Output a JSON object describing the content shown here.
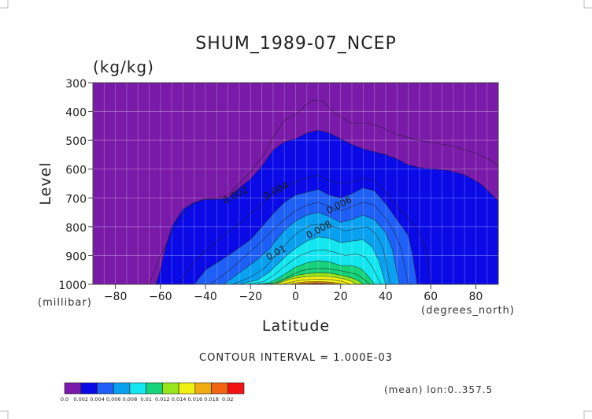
{
  "chart_data": {
    "type": "heatmap",
    "title": "SHUM_1989-07_NCEP",
    "units_label": "(kg/kg)",
    "ylabel": "Level",
    "xlabel": "Latitude",
    "y_unit_label": "(millibar)",
    "x_unit_label": "(degrees_north)",
    "xlim": [
      -90,
      90
    ],
    "ylim": [
      1000,
      300
    ],
    "x_ticks": [
      -80,
      -60,
      -40,
      -20,
      0,
      20,
      40,
      60,
      80
    ],
    "x_tick_labels": [
      "−80",
      "−60",
      "−40",
      "−20",
      "0",
      "20",
      "40",
      "60",
      "80"
    ],
    "y_ticks": [
      300,
      400,
      500,
      600,
      700,
      800,
      900,
      1000
    ],
    "y_tick_labels": [
      "300",
      "400",
      "500",
      "600",
      "700",
      "800",
      "900",
      "1000"
    ],
    "grid": true,
    "contour_interval_text": "CONTOUR INTERVAL = 1.000E-03",
    "mean_text": "(mean) lon:0..357.5",
    "contour_labels": [
      {
        "text": "0.002",
        "x": -26,
        "level": 700
      },
      {
        "text": "0.004",
        "x": -8,
        "level": 685
      },
      {
        "text": "0.006",
        "x": 20,
        "level": 735
      },
      {
        "text": "0.008",
        "x": 11,
        "level": 820
      },
      {
        "text": "0.01",
        "x": -8,
        "level": 900
      }
    ],
    "colorbar": {
      "bounds": [
        "0.0",
        "0.002",
        "0.004",
        "0.006",
        "0.008",
        "0.01",
        "0.012",
        "0.014",
        "0.016",
        "0.018",
        "0.02"
      ],
      "colors": [
        "#7a1aa8",
        "#0a0ae6",
        "#1e5ff5",
        "#0aa0f0",
        "#14e6f0",
        "#16d278",
        "#96e61e",
        "#f0f014",
        "#f0aa14",
        "#f06414",
        "#f01414"
      ]
    },
    "fill_levels": [
      0.001,
      0.002,
      0.003,
      0.004,
      0.005,
      0.006,
      0.007,
      0.008,
      0.009,
      0.01,
      0.011,
      0.012,
      0.013,
      0.014,
      0.015,
      0.016,
      0.017
    ],
    "fill_colors": [
      "#7a1aa8",
      "#0a0ae6",
      "#0a0ae6",
      "#1e5ff5",
      "#1e5ff5",
      "#0aa0f0",
      "#0aa0f0",
      "#14e6f0",
      "#14e6f0",
      "#16d278",
      "#16d278",
      "#96e61e",
      "#f0f014",
      "#f0f014",
      "#f0aa14",
      "#f06414",
      "#f01414"
    ],
    "series": [
      {
        "name": "0.001",
        "points": [
          [
            -65,
            1000
          ],
          [
            -63,
            960
          ],
          [
            -60,
            900
          ],
          [
            -55,
            820
          ],
          [
            -50,
            755
          ],
          [
            -45,
            720
          ],
          [
            -40,
            700
          ],
          [
            -35,
            700
          ],
          [
            -30,
            690
          ],
          [
            -25,
            650
          ],
          [
            -20,
            610
          ],
          [
            -15,
            560
          ],
          [
            -10,
            490
          ],
          [
            -5,
            430
          ],
          [
            0,
            410
          ],
          [
            5,
            375
          ],
          [
            8,
            360
          ],
          [
            12,
            365
          ],
          [
            18,
            410
          ],
          [
            25,
            440
          ],
          [
            32,
            440
          ],
          [
            38,
            455
          ],
          [
            45,
            480
          ],
          [
            50,
            490
          ],
          [
            55,
            500
          ],
          [
            62,
            510
          ],
          [
            70,
            520
          ],
          [
            80,
            545
          ],
          [
            88,
            575
          ],
          [
            90,
            590
          ]
        ]
      },
      {
        "name": "0.002",
        "points": [
          [
            -62,
            1000
          ],
          [
            -60,
            950
          ],
          [
            -58,
            880
          ],
          [
            -55,
            800
          ],
          [
            -50,
            740
          ],
          [
            -45,
            715
          ],
          [
            -40,
            705
          ],
          [
            -35,
            705
          ],
          [
            -30,
            700
          ],
          [
            -25,
            665
          ],
          [
            -20,
            635
          ],
          [
            -15,
            590
          ],
          [
            -10,
            535
          ],
          [
            -5,
            505
          ],
          [
            0,
            495
          ],
          [
            5,
            475
          ],
          [
            10,
            465
          ],
          [
            15,
            475
          ],
          [
            20,
            495
          ],
          [
            25,
            515
          ],
          [
            30,
            530
          ],
          [
            35,
            540
          ],
          [
            40,
            550
          ],
          [
            45,
            565
          ],
          [
            50,
            585
          ],
          [
            55,
            595
          ],
          [
            62,
            600
          ],
          [
            68,
            605
          ],
          [
            75,
            620
          ],
          [
            82,
            650
          ],
          [
            90,
            710
          ]
        ]
      },
      {
        "name": "0.003",
        "points": [
          [
            -52,
            1000
          ],
          [
            -45,
            920
          ],
          [
            -35,
            850
          ],
          [
            -25,
            790
          ],
          [
            -15,
            720
          ],
          [
            -10,
            680
          ],
          [
            -5,
            660
          ],
          [
            0,
            645
          ],
          [
            5,
            630
          ],
          [
            10,
            620
          ],
          [
            15,
            640
          ],
          [
            20,
            650
          ],
          [
            25,
            645
          ],
          [
            30,
            630
          ],
          [
            35,
            640
          ],
          [
            40,
            680
          ],
          [
            45,
            730
          ],
          [
            50,
            770
          ],
          [
            55,
            820
          ],
          [
            58,
            880
          ],
          [
            60,
            1000
          ]
        ]
      },
      {
        "name": "0.004",
        "points": [
          [
            -45,
            1000
          ],
          [
            -40,
            950
          ],
          [
            -30,
            900
          ],
          [
            -20,
            845
          ],
          [
            -15,
            800
          ],
          [
            -10,
            755
          ],
          [
            -5,
            715
          ],
          [
            0,
            690
          ],
          [
            5,
            680
          ],
          [
            10,
            670
          ],
          [
            15,
            690
          ],
          [
            20,
            700
          ],
          [
            25,
            685
          ],
          [
            30,
            665
          ],
          [
            35,
            675
          ],
          [
            40,
            720
          ],
          [
            45,
            775
          ],
          [
            50,
            830
          ],
          [
            52,
            900
          ],
          [
            54,
            1000
          ]
        ]
      },
      {
        "name": "0.005",
        "points": [
          [
            -38,
            1000
          ],
          [
            -30,
            955
          ],
          [
            -22,
            900
          ],
          [
            -15,
            850
          ],
          [
            -10,
            810
          ],
          [
            -5,
            775
          ],
          [
            0,
            745
          ],
          [
            5,
            725
          ],
          [
            10,
            715
          ],
          [
            15,
            730
          ],
          [
            20,
            745
          ],
          [
            25,
            730
          ],
          [
            30,
            715
          ],
          [
            35,
            725
          ],
          [
            40,
            770
          ],
          [
            44,
            820
          ],
          [
            47,
            880
          ],
          [
            50,
            1000
          ]
        ]
      },
      {
        "name": "0.006",
        "points": [
          [
            -32,
            1000
          ],
          [
            -25,
            960
          ],
          [
            -18,
            920
          ],
          [
            -12,
            880
          ],
          [
            -8,
            840
          ],
          [
            -4,
            805
          ],
          [
            0,
            780
          ],
          [
            5,
            760
          ],
          [
            10,
            750
          ],
          [
            15,
            765
          ],
          [
            20,
            785
          ],
          [
            25,
            775
          ],
          [
            30,
            760
          ],
          [
            35,
            775
          ],
          [
            40,
            820
          ],
          [
            43,
            880
          ],
          [
            46,
            1000
          ]
        ]
      },
      {
        "name": "0.007",
        "points": [
          [
            -28,
            1000
          ],
          [
            -20,
            975
          ],
          [
            -14,
            945
          ],
          [
            -10,
            910
          ],
          [
            -6,
            875
          ],
          [
            -2,
            840
          ],
          [
            2,
            815
          ],
          [
            7,
            795
          ],
          [
            12,
            790
          ],
          [
            17,
            800
          ],
          [
            22,
            815
          ],
          [
            28,
            805
          ],
          [
            32,
            800
          ],
          [
            36,
            830
          ],
          [
            39,
            880
          ],
          [
            42,
            1000
          ]
        ]
      },
      {
        "name": "0.008",
        "points": [
          [
            -25,
            1000
          ],
          [
            -17,
            985
          ],
          [
            -12,
            960
          ],
          [
            -8,
            930
          ],
          [
            -4,
            900
          ],
          [
            0,
            875
          ],
          [
            5,
            850
          ],
          [
            10,
            835
          ],
          [
            15,
            840
          ],
          [
            20,
            855
          ],
          [
            25,
            850
          ],
          [
            30,
            845
          ],
          [
            34,
            870
          ],
          [
            37,
            920
          ],
          [
            40,
            1000
          ]
        ]
      },
      {
        "name": "0.009",
        "points": [
          [
            -22,
            1000
          ],
          [
            -14,
            990
          ],
          [
            -10,
            970
          ],
          [
            -6,
            945
          ],
          [
            -2,
            920
          ],
          [
            2,
            900
          ],
          [
            7,
            885
          ],
          [
            12,
            880
          ],
          [
            17,
            888
          ],
          [
            22,
            900
          ],
          [
            27,
            895
          ],
          [
            31,
            905
          ],
          [
            34,
            940
          ],
          [
            38,
            1000
          ]
        ]
      },
      {
        "name": "0.01",
        "points": [
          [
            -19,
            1000
          ],
          [
            -12,
            995
          ],
          [
            -8,
            980
          ],
          [
            -4,
            960
          ],
          [
            0,
            940
          ],
          [
            5,
            925
          ],
          [
            10,
            918
          ],
          [
            15,
            922
          ],
          [
            20,
            935
          ],
          [
            25,
            935
          ],
          [
            29,
            945
          ],
          [
            32,
            970
          ],
          [
            35,
            1000
          ]
        ]
      },
      {
        "name": "0.011",
        "points": [
          [
            -15,
            1000
          ],
          [
            -9,
            995
          ],
          [
            -5,
            980
          ],
          [
            -1,
            965
          ],
          [
            3,
            952
          ],
          [
            8,
            945
          ],
          [
            13,
            945
          ],
          [
            18,
            950
          ],
          [
            23,
            958
          ],
          [
            27,
            965
          ],
          [
            30,
            980
          ],
          [
            33,
            1000
          ]
        ]
      },
      {
        "name": "0.012",
        "points": [
          [
            -12,
            1000
          ],
          [
            -7,
            992
          ],
          [
            -3,
            978
          ],
          [
            1,
            968
          ],
          [
            6,
            962
          ],
          [
            11,
            960
          ],
          [
            16,
            962
          ],
          [
            21,
            970
          ],
          [
            25,
            978
          ],
          [
            28,
            988
          ],
          [
            30,
            1000
          ]
        ]
      },
      {
        "name": "0.013",
        "points": [
          [
            -9,
            1000
          ],
          [
            -5,
            990
          ],
          [
            -1,
            980
          ],
          [
            3,
            975
          ],
          [
            8,
            972
          ],
          [
            13,
            972
          ],
          [
            18,
            976
          ],
          [
            22,
            982
          ],
          [
            25,
            990
          ],
          [
            27,
            1000
          ]
        ]
      },
      {
        "name": "0.014",
        "points": [
          [
            -6,
            1000
          ],
          [
            -2,
            992
          ],
          [
            2,
            986
          ],
          [
            6,
            983
          ],
          [
            11,
            982
          ],
          [
            16,
            984
          ],
          [
            20,
            989
          ],
          [
            23,
            995
          ],
          [
            24,
            1000
          ]
        ]
      },
      {
        "name": "0.015",
        "points": [
          [
            -3,
            1000
          ],
          [
            1,
            994
          ],
          [
            5,
            991
          ],
          [
            10,
            990
          ],
          [
            15,
            992
          ],
          [
            19,
            996
          ],
          [
            21,
            1000
          ]
        ]
      },
      {
        "name": "0.016",
        "points": [
          [
            0,
            1000
          ],
          [
            4,
            996
          ],
          [
            9,
            994
          ],
          [
            14,
            995
          ],
          [
            17,
            998
          ],
          [
            18,
            1000
          ]
        ]
      },
      {
        "name": "0.017",
        "points": [
          [
            4,
            1000
          ],
          [
            8,
            998
          ],
          [
            12,
            998
          ],
          [
            15,
            1000
          ]
        ]
      }
    ]
  }
}
